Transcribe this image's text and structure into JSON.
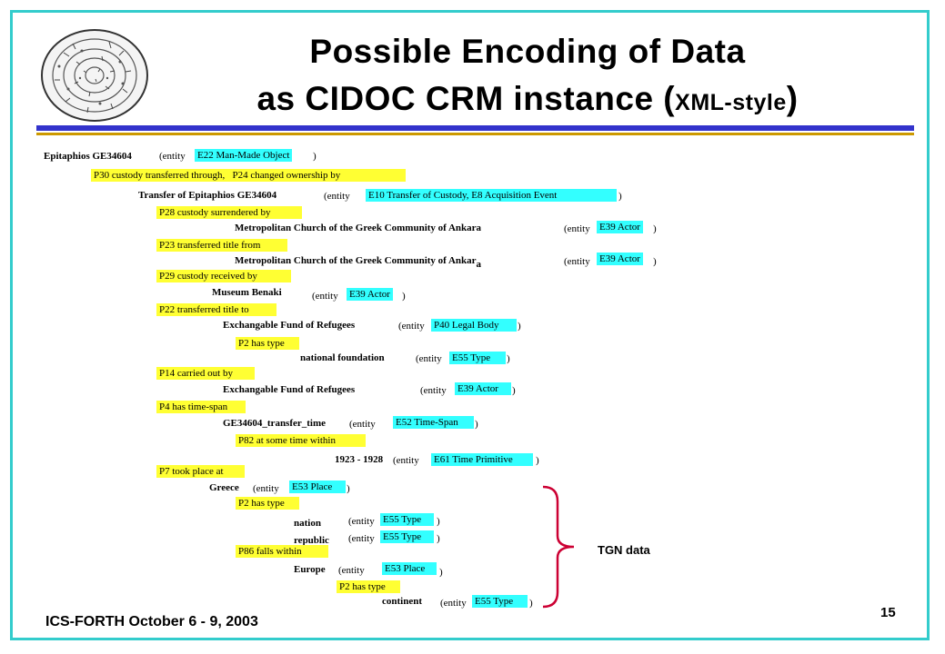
{
  "title": {
    "line1": "Possible Encoding of Data",
    "line2_main": "as CIDOC CRM instance (",
    "line2_small": "XML-style",
    "line2_end": ")"
  },
  "lines": {
    "epitaphios": "Epitaphios GE34604",
    "entity_open": "(entity",
    "close_paren": ")",
    "e22": "E22 Man-Made Object",
    "p30": "P30 custody transferred through,",
    "p24": "P24 changed ownership by",
    "transfer": "Transfer of Epitaphios GE34604",
    "e10": "E10 Transfer of Custody, E8 Acquisition Event",
    "p28": "P28 custody surrendered by",
    "metro1": "Metropolitan Church of the Greek Community of Ankara",
    "e39": "E39 Actor",
    "p23": "P23 transferred title from",
    "metro2": "Metropolitan Church of the Greek Community of Ankar",
    "metro2_sub": "a",
    "p29": "P29 custody received by",
    "benaki": "Museum Benaki",
    "p22": "P22 transferred title to",
    "fund1": "Exchangable Fund of Refugees",
    "p40": "P40 Legal Body",
    "p2": "P2 has type",
    "natfound": "national foundation",
    "e55": "E55 Type",
    "p14": "P14 carried out by",
    "fund2": "Exchangable Fund of Refugees",
    "p4": "P4 has time-span",
    "timespan": "GE34604_transfer_time",
    "e52": "E52 Time-Span",
    "p82": "P82 at some time  within",
    "years": "1923  -  1928",
    "e61": "E61 Time Primitive",
    "p7": "P7 took place at",
    "greece": "Greece",
    "e53": "E53 Place",
    "nation": "nation",
    "republic": "republic",
    "p86": "P86 falls within",
    "europe": "Europe",
    "continent": "continent"
  },
  "tgn_label": "TGN data",
  "footer": "ICS-FORTH October 6 - 9, 2003",
  "page_number": "15",
  "colors": {
    "frame": "#33cccc",
    "rule_blue": "#3333cc",
    "rule_gold": "#cc9900",
    "property_bg": "#ffff33",
    "class_bg": "#33ffff",
    "brace": "#cc0033"
  }
}
